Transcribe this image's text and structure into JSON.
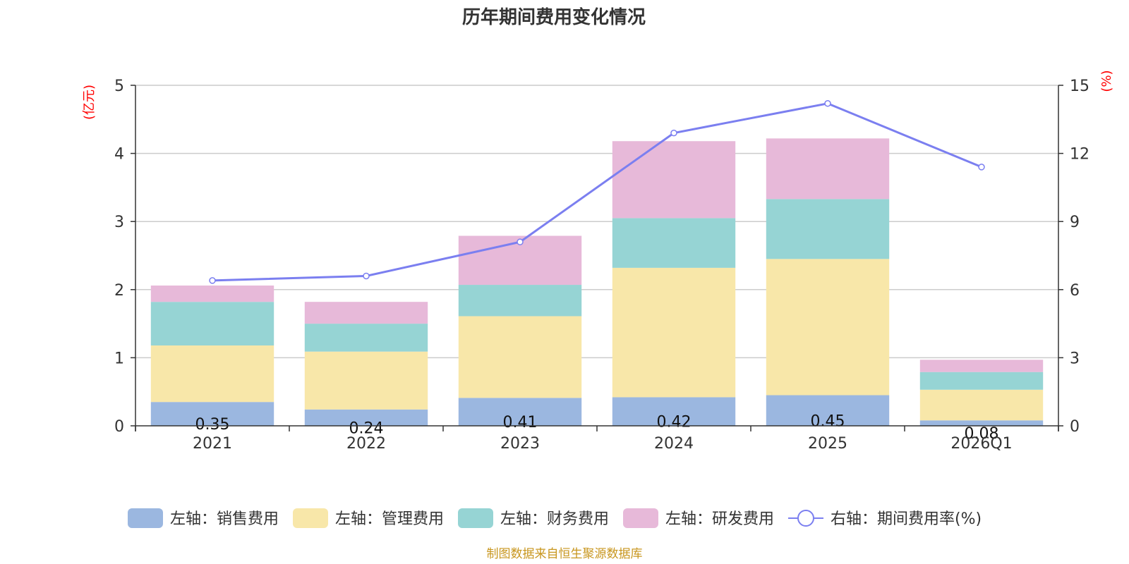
{
  "chart_data": {
    "type": "bar",
    "stacked": true,
    "title": "历年期间费用变化情况",
    "categories": [
      "2021",
      "2022",
      "2023",
      "2024",
      "2025",
      "2026Q1"
    ],
    "left_axis": {
      "unit": "(亿元)",
      "ylim": [
        0,
        5
      ],
      "ticks": [
        "0",
        "1",
        "2",
        "3",
        "4",
        "5"
      ]
    },
    "right_axis": {
      "unit": "(%)",
      "ylim": [
        0,
        15
      ],
      "ticks": [
        "0",
        "3",
        "6",
        "9",
        "12",
        "15"
      ]
    },
    "series": [
      {
        "name": "左轴：销售费用",
        "type": "bar",
        "axis": "left",
        "color": "#9bb7e0",
        "values": [
          0.35,
          0.24,
          0.41,
          0.42,
          0.45,
          0.08
        ],
        "labels": [
          "0.35",
          "0.24",
          "0.41",
          "0.42",
          "0.45",
          "0.08"
        ]
      },
      {
        "name": "左轴：管理费用",
        "type": "bar",
        "axis": "left",
        "color": "#f8e7a9",
        "values": [
          0.83,
          0.85,
          1.2,
          1.9,
          2.0,
          0.45
        ]
      },
      {
        "name": "左轴：财务费用",
        "type": "bar",
        "axis": "left",
        "color": "#96d4d4",
        "values": [
          0.64,
          0.41,
          0.46,
          0.73,
          0.88,
          0.26
        ]
      },
      {
        "name": "左轴：研发费用",
        "type": "bar",
        "axis": "left",
        "color": "#e7b9d9",
        "values": [
          0.24,
          0.32,
          0.72,
          1.13,
          0.89,
          0.18
        ]
      },
      {
        "name": "右轴：期间费用率(%)",
        "type": "line",
        "axis": "right",
        "color": "#7b7ff0",
        "values": [
          6.4,
          6.6,
          8.1,
          12.9,
          14.2,
          11.4
        ]
      }
    ],
    "grid": true,
    "legend_position": "bottom"
  },
  "footer": {
    "source": "制图数据来自恒生聚源数据库"
  }
}
